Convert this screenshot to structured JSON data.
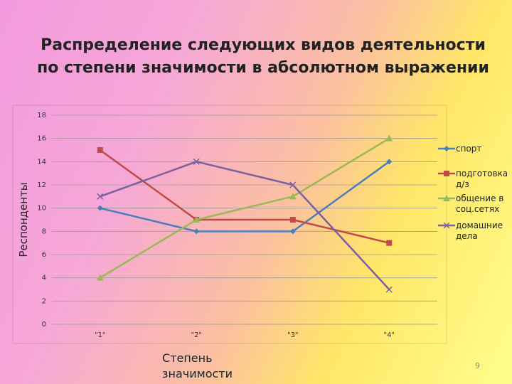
{
  "chart_data": {
    "type": "line",
    "title": "Распределение следующих  видов деятельности  по степени значимости в абсолютном выражении",
    "y_label": "Респонденты",
    "x_label": "Степень значимости",
    "categories": [
      "\"1\"",
      "\"2\"",
      "\"3\"",
      "\"4\""
    ],
    "series": [
      {
        "name": "спорт",
        "color": "#4a7ebb",
        "marker": "diamond",
        "values": [
          10,
          8,
          8,
          14
        ]
      },
      {
        "name": "подготовка д/з",
        "color": "#be4b48",
        "marker": "square",
        "values": [
          15,
          9,
          9,
          7
        ]
      },
      {
        "name": "общение в соц.сетях",
        "color": "#98b954",
        "marker": "triangle",
        "values": [
          4,
          9,
          11,
          16
        ]
      },
      {
        "name": "домашние дела",
        "color": "#7d60a0",
        "marker": "x",
        "values": [
          11,
          14,
          12,
          3
        ]
      }
    ],
    "ylim": [
      0,
      18
    ],
    "yticks": [
      0,
      2,
      4,
      6,
      8,
      10,
      12,
      14,
      16,
      18
    ],
    "grid": true,
    "legend": "right"
  },
  "page_number": 9
}
